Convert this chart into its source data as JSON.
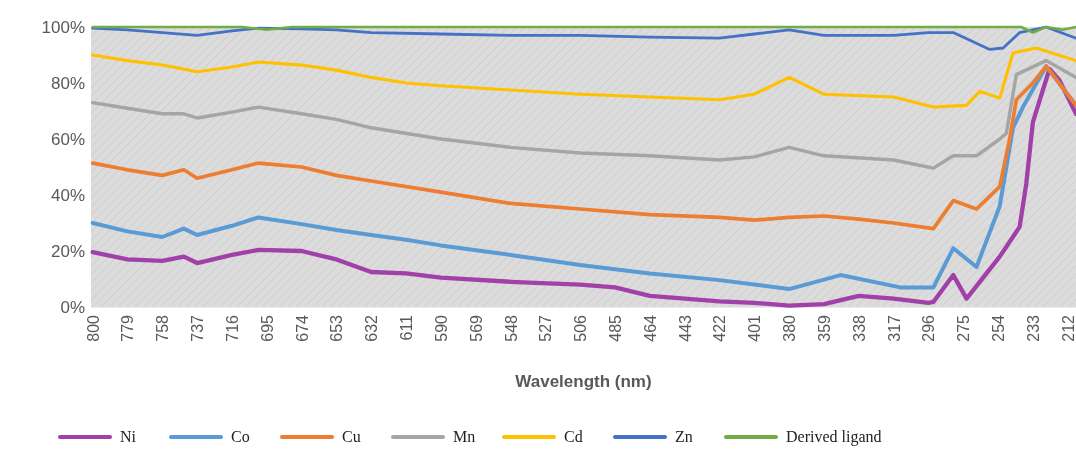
{
  "chart_data": {
    "type": "line",
    "xlabel": "Wavelength (nm)",
    "xlim": [
      801,
      207
    ],
    "xticks": [
      800,
      779,
      758,
      737,
      716,
      695,
      674,
      653,
      632,
      611,
      590,
      569,
      548,
      527,
      506,
      485,
      464,
      443,
      422,
      401,
      380,
      359,
      338,
      317,
      296,
      275,
      254,
      233,
      212
    ],
    "ylim": [
      0,
      100
    ],
    "yticks": [
      {
        "value": 0,
        "label": "0%"
      },
      {
        "value": 20,
        "label": "20%"
      },
      {
        "value": 40,
        "label": "40%"
      },
      {
        "value": 60,
        "label": "60%"
      },
      {
        "value": 80,
        "label": "80%"
      },
      {
        "value": 100,
        "label": "100%"
      }
    ],
    "grid": false,
    "legend": "bottom",
    "line_style": "solid",
    "marker": "none",
    "series": [
      {
        "name": "Ni",
        "color": "#a040a8",
        "x": [
          800,
          779,
          758,
          745,
          737,
          716,
          700,
          674,
          653,
          632,
          611,
          590,
          548,
          506,
          485,
          464,
          443,
          422,
          401,
          380,
          359,
          338,
          317,
          296,
          293,
          281,
          273,
          253,
          241,
          237,
          233,
          223,
          217,
          207
        ],
        "values": [
          19.6,
          17,
          16.5,
          18,
          15.7,
          18.6,
          20.4,
          20,
          17,
          12.5,
          12,
          10.5,
          9,
          8,
          7,
          4,
          3,
          2,
          1.5,
          0.5,
          1,
          4,
          3,
          1.5,
          1.8,
          11.4,
          3,
          18,
          28.6,
          44,
          66,
          85,
          81,
          69
        ]
      },
      {
        "name": "Co",
        "color": "#5b9bd5",
        "x": [
          800,
          779,
          758,
          745,
          737,
          716,
          700,
          674,
          653,
          632,
          611,
          590,
          548,
          506,
          464,
          422,
          401,
          380,
          349,
          313,
          293,
          281,
          267,
          253,
          245,
          239,
          225,
          207
        ],
        "values": [
          30,
          27,
          25,
          28,
          25.7,
          29,
          32,
          29.6,
          27.5,
          25.7,
          24,
          22,
          18.6,
          15,
          12,
          9.6,
          8,
          6.4,
          11.4,
          7,
          7,
          21,
          14.3,
          36,
          64,
          71.4,
          86,
          72
        ]
      },
      {
        "name": "Cu",
        "color": "#ed7d31",
        "x": [
          800,
          779,
          758,
          745,
          737,
          716,
          700,
          674,
          653,
          632,
          590,
          548,
          506,
          464,
          422,
          401,
          380,
          359,
          338,
          317,
          293,
          281,
          267,
          253,
          247,
          243,
          233,
          225,
          207
        ],
        "values": [
          51.4,
          49,
          47,
          49,
          46,
          49,
          51.4,
          50,
          47,
          45,
          41,
          37,
          35,
          33,
          32,
          31,
          32,
          32.5,
          31.4,
          30,
          28,
          38,
          35,
          43,
          60,
          74,
          80,
          86,
          72
        ]
      },
      {
        "name": "Mn",
        "color": "#a5a5a5",
        "x": [
          800,
          779,
          758,
          745,
          737,
          716,
          700,
          674,
          653,
          632,
          590,
          548,
          506,
          464,
          422,
          401,
          380,
          359,
          317,
          293,
          281,
          267,
          253,
          249,
          243,
          225,
          207
        ],
        "values": [
          73,
          71,
          69,
          69,
          67.5,
          69.6,
          71.4,
          69,
          67,
          64,
          60,
          57,
          55,
          54,
          52.5,
          53.6,
          57,
          54,
          52.5,
          49.6,
          54,
          54,
          60,
          62,
          83,
          88,
          82
        ]
      },
      {
        "name": "Cd",
        "color": "#ffc000",
        "x": [
          800,
          779,
          758,
          737,
          716,
          700,
          674,
          653,
          632,
          611,
          590,
          548,
          506,
          464,
          422,
          401,
          380,
          359,
          317,
          293,
          273,
          265,
          253,
          245,
          231,
          207
        ],
        "values": [
          90,
          88,
          86.4,
          84,
          85.7,
          87.5,
          86.4,
          84.6,
          82,
          80,
          79,
          77.5,
          76,
          75,
          74,
          76,
          82,
          76,
          75,
          71.4,
          72,
          77,
          74.6,
          90.7,
          92.5,
          88
        ]
      },
      {
        "name": "Zn",
        "color": "#4472c4",
        "x": [
          800,
          779,
          758,
          737,
          716,
          700,
          674,
          653,
          632,
          590,
          548,
          506,
          464,
          422,
          401,
          380,
          359,
          317,
          296,
          281,
          259,
          251,
          241,
          225,
          207
        ],
        "values": [
          99.6,
          99,
          98,
          97,
          98.6,
          99.6,
          99.3,
          99,
          98,
          97.5,
          97,
          97,
          96.4,
          96,
          97.5,
          99,
          97,
          97,
          98,
          98,
          92,
          92.5,
          98,
          100,
          96
        ]
      },
      {
        "name": "Derived ligand",
        "color": "#70ad47",
        "x": [
          800,
          710,
          695,
          680,
          500,
          300,
          240,
          233,
          225,
          215,
          207
        ],
        "values": [
          100,
          100,
          99,
          100,
          100,
          100,
          100,
          98,
          100,
          99,
          100
        ]
      }
    ]
  }
}
